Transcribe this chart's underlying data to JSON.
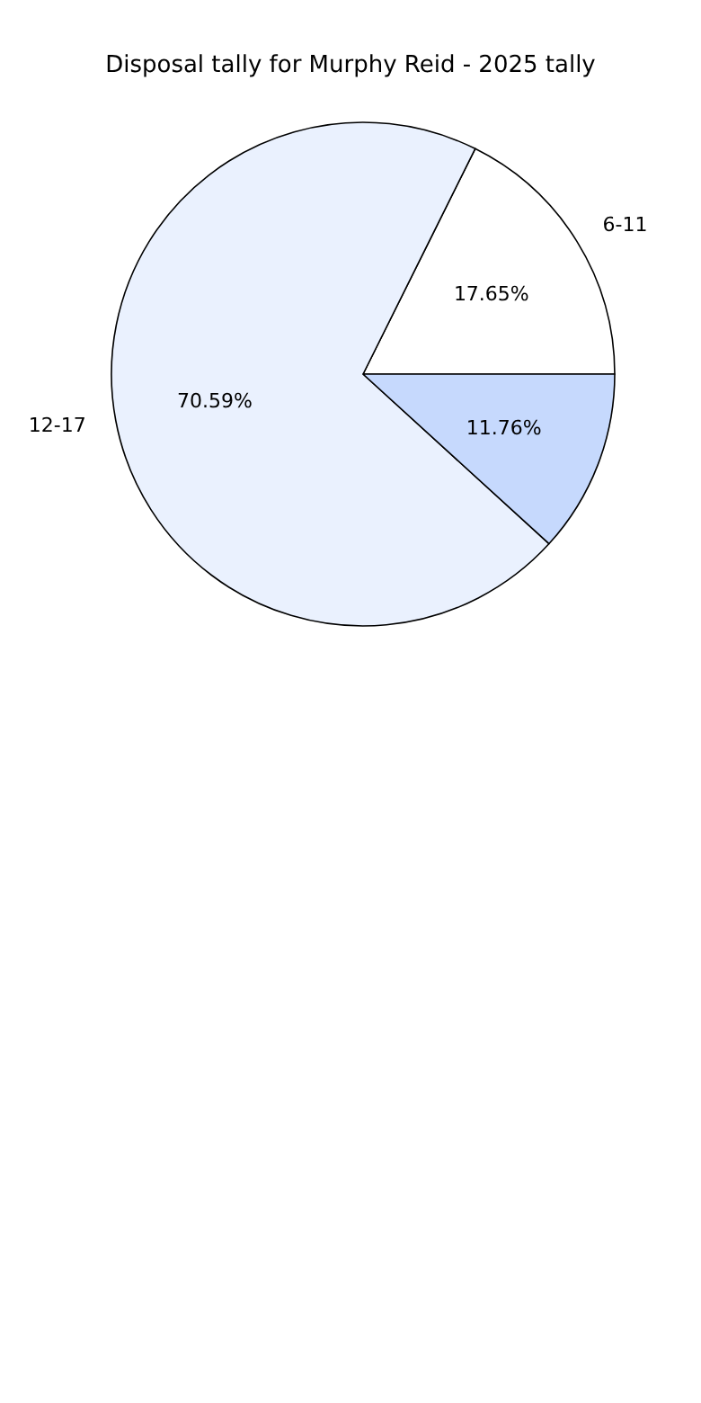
{
  "chart_data": {
    "type": "pie",
    "title": "Disposal tally for Murphy Reid - 2025 tally",
    "categories": [
      "6-11",
      "12-17",
      null
    ],
    "values": [
      17.65,
      70.59,
      11.76
    ],
    "colors": [
      "#ffffff",
      "#eaf1fe",
      "#c6d9fd"
    ],
    "value_labels": [
      "17.65%",
      "70.59%",
      "11.76%"
    ]
  }
}
